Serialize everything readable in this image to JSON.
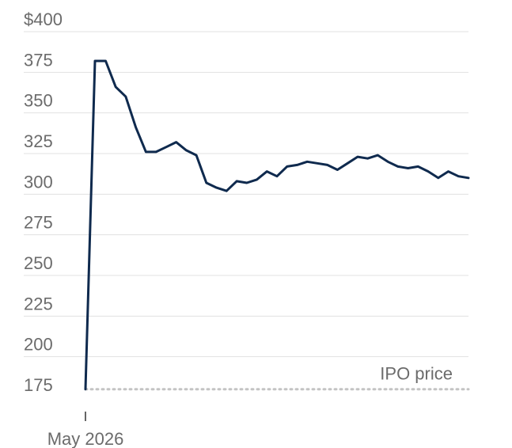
{
  "chart_data": {
    "type": "line",
    "title": "",
    "xlabel": "",
    "ylabel": "",
    "ylim": [
      175,
      400
    ],
    "y_ticks": [
      {
        "value": 400,
        "label": "$400"
      },
      {
        "value": 375,
        "label": "375"
      },
      {
        "value": 350,
        "label": "350"
      },
      {
        "value": 325,
        "label": "325"
      },
      {
        "value": 300,
        "label": "300"
      },
      {
        "value": 275,
        "label": "275"
      },
      {
        "value": 250,
        "label": "250"
      },
      {
        "value": 225,
        "label": "225"
      },
      {
        "value": 200,
        "label": "200"
      },
      {
        "value": 175,
        "label": "175"
      }
    ],
    "x_tick_label": "May 2026",
    "grid": true,
    "series": [
      {
        "color": "#0f2a4e",
        "values": [
          180,
          382,
          382,
          366,
          360,
          341,
          326,
          326,
          329,
          332,
          327,
          324,
          307,
          304,
          302,
          308,
          307,
          309,
          314,
          311,
          317,
          318,
          320,
          319,
          318,
          315,
          319,
          323,
          322,
          324,
          320,
          317,
          316,
          317,
          314,
          310,
          314,
          311,
          310
        ]
      }
    ],
    "reference_line": {
      "label": "IPO price",
      "value": 180,
      "color": "#c4c4c4"
    },
    "gridline_color": "#e1e1e1"
  }
}
